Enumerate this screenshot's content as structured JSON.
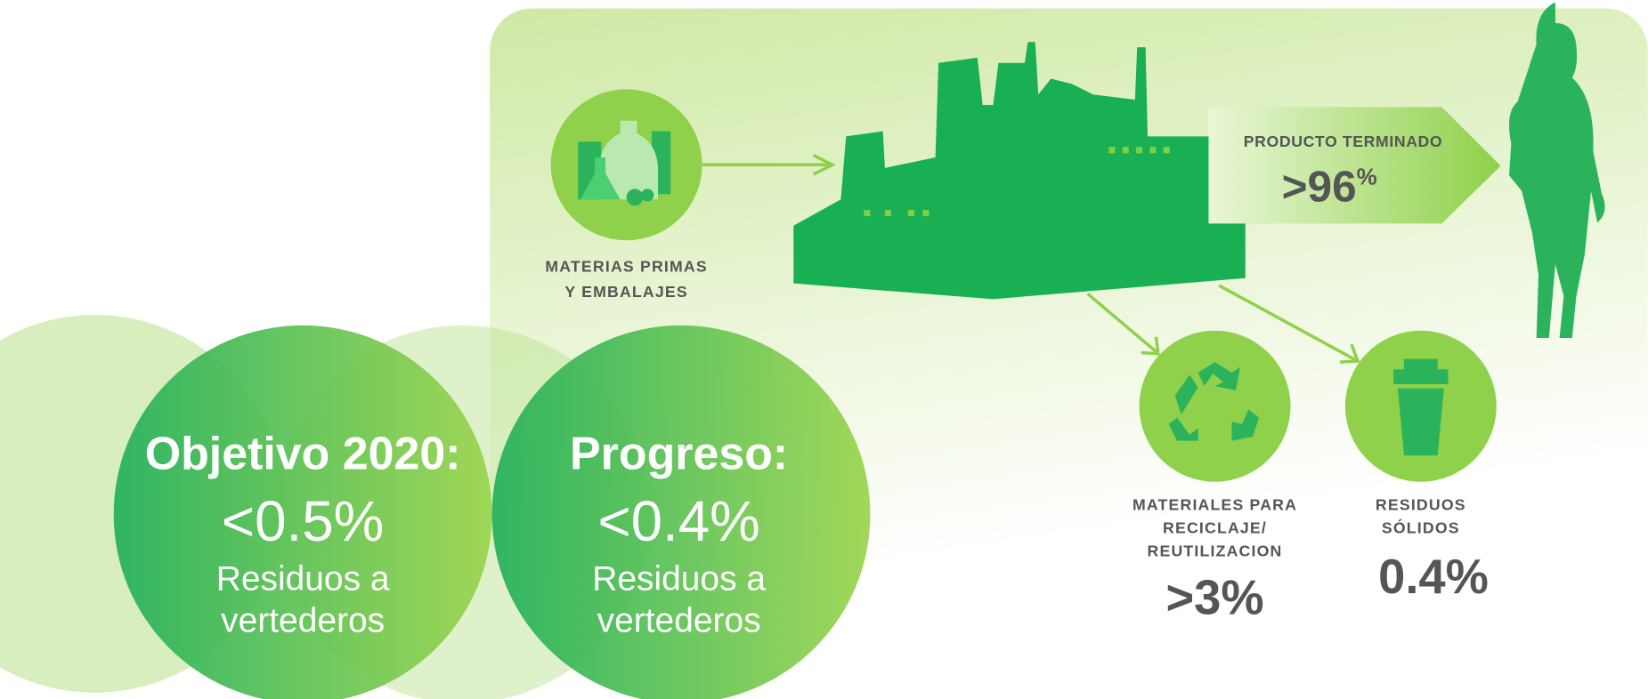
{
  "flow": {
    "input": {
      "label": [
        "MATERIAS PRIMAS",
        "Y EMBALAJES"
      ]
    },
    "product": {
      "label": "PRODUCTO TERMINADO",
      "value": ">96",
      "unit": "%"
    },
    "recycle": {
      "label": [
        "MATERIALES PARA",
        "RECICLAJE/",
        "REUTILIZACION"
      ],
      "value": ">3%"
    },
    "solid": {
      "label": [
        "RESIDUOS",
        "SÓLIDOS"
      ],
      "value": "0.4%"
    }
  },
  "goals": [
    {
      "title": "Objetivo 2020:",
      "value": "<0.5%",
      "label": [
        "Residuos a",
        "vertederos"
      ]
    },
    {
      "title": "Progreso:",
      "value": "<0.4%",
      "label": [
        "Residuos a",
        "vertederos"
      ]
    }
  ]
}
